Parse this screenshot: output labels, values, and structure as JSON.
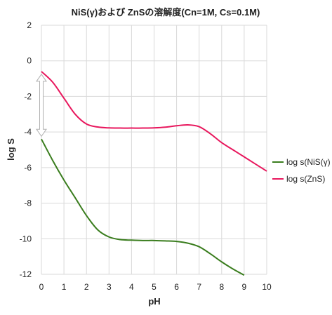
{
  "chart_data": {
    "type": "line",
    "title": "NiS(γ)および ZnSの溶解度(Cn=1M, Cs=0.1M)",
    "xlabel": "pH",
    "ylabel": "log S",
    "xlim": [
      0,
      10
    ],
    "ylim": [
      -12,
      2
    ],
    "x_ticks": [
      "0",
      "1",
      "2",
      "3",
      "4",
      "5",
      "6",
      "7",
      "8",
      "9",
      "10"
    ],
    "y_ticks": [
      "2",
      "0",
      "-2",
      "-4",
      "-6",
      "-8",
      "-10",
      "-12"
    ],
    "grid": true,
    "legend_position": "right",
    "series": [
      {
        "name": "log s(NiS(γ)",
        "color": "#3a7d1e",
        "x": [
          0,
          0.5,
          1,
          1.5,
          2,
          2.5,
          3,
          3.5,
          4,
          4.5,
          5,
          5.5,
          6,
          6.5,
          7,
          7.5,
          8,
          8.5,
          9
        ],
        "y": [
          -4.4,
          -5.6,
          -6.7,
          -7.7,
          -8.7,
          -9.5,
          -9.9,
          -10.05,
          -10.08,
          -10.1,
          -10.1,
          -10.12,
          -10.15,
          -10.25,
          -10.45,
          -10.85,
          -11.3,
          -11.7,
          -12.05
        ]
      },
      {
        "name": "log s(ZnS)",
        "color": "#e8175d",
        "x": [
          0,
          0.5,
          1,
          1.5,
          2,
          2.5,
          3,
          3.5,
          4,
          4.5,
          5,
          5.5,
          6,
          6.5,
          7,
          7.5,
          8,
          8.5,
          9,
          9.5,
          10
        ],
        "y": [
          -0.6,
          -1.2,
          -2.1,
          -3.0,
          -3.55,
          -3.72,
          -3.77,
          -3.78,
          -3.78,
          -3.78,
          -3.77,
          -3.73,
          -3.65,
          -3.6,
          -3.7,
          -4.1,
          -4.6,
          -5.0,
          -5.4,
          -5.8,
          -6.2
        ]
      }
    ],
    "annotation": {
      "type": "double-arrow",
      "x": 0,
      "y_from": -0.6,
      "y_to": -4.4,
      "color": "#b0b0b0"
    }
  }
}
